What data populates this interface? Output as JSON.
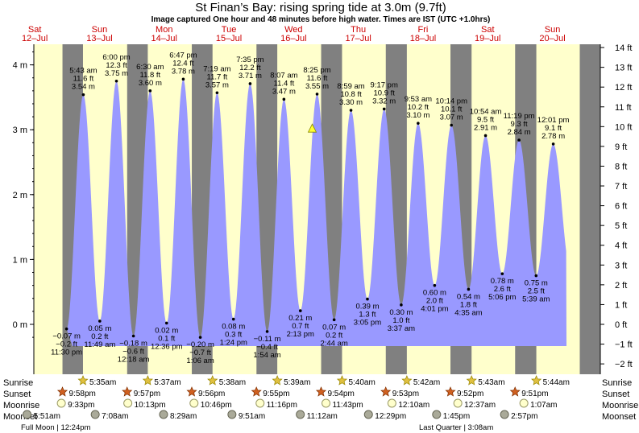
{
  "header": {
    "title": "St Finan’s Bay: rising  spring tide at 3.0m (9.7ft)",
    "subtitle": "Image captured One hour and 48 minutes before high water. Times are IST (UTC +1.0hrs)"
  },
  "colors": {
    "night": "#808080",
    "day": "#ffffcc",
    "tide": "#9999ff",
    "day_label": "#cc0000"
  },
  "chart_data": {
    "type": "area",
    "title": "St Finan’s Bay: rising  spring tide at 3.0m (9.7ft)",
    "x_start_hours": 0,
    "days": [
      {
        "day": "Sat",
        "date": "12–Jul"
      },
      {
        "day": "Sun",
        "date": "13–Jul"
      },
      {
        "day": "Mon",
        "date": "14–Jul"
      },
      {
        "day": "Tue",
        "date": "15–Jul"
      },
      {
        "day": "Wed",
        "date": "16–Jul"
      },
      {
        "day": "Thu",
        "date": "17–Jul"
      },
      {
        "day": "Fri",
        "date": "18–Jul"
      },
      {
        "day": "Sat",
        "date": "19–Jul"
      },
      {
        "day": "Sun",
        "date": "20–Jul"
      }
    ],
    "y_left": {
      "unit": "m",
      "ticks": [
        "0 m",
        "1 m",
        "2 m",
        "3 m",
        "4 m"
      ],
      "min": -0.3,
      "max": 4.3
    },
    "y_right": {
      "unit": "ft",
      "ticks": [
        "−2 ft",
        "−1 ft",
        "0 ft",
        "1 ft",
        "2 ft",
        "3 ft",
        "4 ft",
        "5 ft",
        "6 ft",
        "7 ft",
        "8 ft",
        "9 ft",
        "10 ft",
        "11 ft",
        "12 ft",
        "13 ft",
        "14 ft"
      ]
    },
    "tides": [
      {
        "type": "low",
        "time": "11:30 pm",
        "m": "−0.07 m",
        "ft": "−0.2 ft",
        "day": 0,
        "hour": 23.5,
        "height": -0.07
      },
      {
        "type": "high",
        "time": "5:43 am",
        "m": "3.54 m",
        "ft": "11.6 ft",
        "day": 1,
        "hour": 5.717,
        "height": 3.54
      },
      {
        "type": "low",
        "time": "11:49 am",
        "m": "0.05 m",
        "ft": "0.2 ft",
        "day": 1,
        "hour": 11.817,
        "height": 0.05
      },
      {
        "type": "high",
        "time": "6:00 pm",
        "m": "3.75 m",
        "ft": "12.3 ft",
        "day": 1,
        "hour": 18.0,
        "height": 3.75
      },
      {
        "type": "low",
        "time": "12:18 am",
        "m": "−0.18 m",
        "ft": "−0.6 ft",
        "day": 2,
        "hour": 0.3,
        "height": -0.18
      },
      {
        "type": "high",
        "time": "6:30 am",
        "m": "3.60 m",
        "ft": "11.8 ft",
        "day": 2,
        "hour": 6.5,
        "height": 3.6
      },
      {
        "type": "low",
        "time": "12:36 pm",
        "m": "0.02 m",
        "ft": "0.1 ft",
        "day": 2,
        "hour": 12.6,
        "height": 0.02
      },
      {
        "type": "high",
        "time": "6:47 pm",
        "m": "3.78 m",
        "ft": "12.4 ft",
        "day": 2,
        "hour": 18.783,
        "height": 3.78
      },
      {
        "type": "low",
        "time": "1:06 am",
        "m": "−0.20 m",
        "ft": "−0.7 ft",
        "day": 3,
        "hour": 1.1,
        "height": -0.2
      },
      {
        "type": "high",
        "time": "7:19 am",
        "m": "3.57 m",
        "ft": "11.7 ft",
        "day": 3,
        "hour": 7.317,
        "height": 3.57
      },
      {
        "type": "low",
        "time": "1:24 pm",
        "m": "0.08 m",
        "ft": "0.3 ft",
        "day": 3,
        "hour": 13.4,
        "height": 0.08
      },
      {
        "type": "high",
        "time": "7:35 pm",
        "m": "3.71 m",
        "ft": "12.2 ft",
        "day": 3,
        "hour": 19.583,
        "height": 3.71
      },
      {
        "type": "low",
        "time": "1:54 am",
        "m": "−0.11 m",
        "ft": "−0.4 ft",
        "day": 4,
        "hour": 1.9,
        "height": -0.11
      },
      {
        "type": "high",
        "time": "8:07 am",
        "m": "3.47 m",
        "ft": "11.4 ft",
        "day": 4,
        "hour": 8.117,
        "height": 3.47
      },
      {
        "type": "low",
        "time": "2:13 pm",
        "m": "0.21 m",
        "ft": "0.7 ft",
        "day": 4,
        "hour": 14.217,
        "height": 0.21
      },
      {
        "type": "high",
        "time": "8:25 pm",
        "m": "3.55 m",
        "ft": "11.6 ft",
        "day": 4,
        "hour": 20.417,
        "height": 3.55
      },
      {
        "type": "low",
        "time": "2:44 am",
        "m": "0.07 m",
        "ft": "0.2 ft",
        "day": 5,
        "hour": 2.733,
        "height": 0.07
      },
      {
        "type": "high",
        "time": "8:59 am",
        "m": "3.30 m",
        "ft": "10.8 ft",
        "day": 5,
        "hour": 8.983,
        "height": 3.3
      },
      {
        "type": "low",
        "time": "3:05 pm",
        "m": "0.39 m",
        "ft": "1.3 ft",
        "day": 5,
        "hour": 15.083,
        "height": 0.39
      },
      {
        "type": "high",
        "time": "9:17 pm",
        "m": "3.32 m",
        "ft": "10.9 ft",
        "day": 5,
        "hour": 21.283,
        "height": 3.32
      },
      {
        "type": "low",
        "time": "3:37 am",
        "m": "0.30 m",
        "ft": "1.0 ft",
        "day": 6,
        "hour": 3.617,
        "height": 0.3
      },
      {
        "type": "high",
        "time": "9:53 am",
        "m": "3.10 m",
        "ft": "10.2 ft",
        "day": 6,
        "hour": 9.883,
        "height": 3.1
      },
      {
        "type": "low",
        "time": "4:01 pm",
        "m": "0.60 m",
        "ft": "2.0 ft",
        "day": 6,
        "hour": 16.017,
        "height": 0.6
      },
      {
        "type": "high",
        "time": "10:14 pm",
        "m": "3.07 m",
        "ft": "10.1 ft",
        "day": 6,
        "hour": 22.233,
        "height": 3.07
      },
      {
        "type": "low",
        "time": "4:35 am",
        "m": "0.54 m",
        "ft": "1.8 ft",
        "day": 7,
        "hour": 4.583,
        "height": 0.54
      },
      {
        "type": "high",
        "time": "10:54 am",
        "m": "2.91 m",
        "ft": "9.5 ft",
        "day": 7,
        "hour": 10.9,
        "height": 2.91
      },
      {
        "type": "low",
        "time": "5:06 pm",
        "m": "0.78 m",
        "ft": "2.6 ft",
        "day": 7,
        "hour": 17.1,
        "height": 0.78
      },
      {
        "type": "high",
        "time": "11:19 pm",
        "m": "2.84 m",
        "ft": "9.3 ft",
        "day": 7,
        "hour": 23.317,
        "height": 2.84
      },
      {
        "type": "low",
        "time": "5:39 am",
        "m": "0.75 m",
        "ft": "2.5 ft",
        "day": 8,
        "hour": 5.65,
        "height": 0.75
      },
      {
        "type": "high",
        "time": "12:01 pm",
        "m": "2.78 m",
        "ft": "9.1 ft",
        "day": 8,
        "hour": 12.017,
        "height": 2.78
      }
    ],
    "current": {
      "height": 3.0,
      "day": 4,
      "hour": 18.617
    },
    "sun": [
      {
        "sunrise": "5:35am",
        "sunset": "9:58pm",
        "moonrise": "9:33pm",
        "moonset": "5:51am"
      },
      {
        "sunrise": "5:37am",
        "sunset": "9:57pm",
        "moonrise": "10:13pm",
        "moonset": "7:08am"
      },
      {
        "sunrise": "5:38am",
        "sunset": "9:56pm",
        "moonrise": "10:46pm",
        "moonset": "8:29am"
      },
      {
        "sunrise": "5:39am",
        "sunset": "9:55pm",
        "moonrise": "11:16pm",
        "moonset": "9:51am"
      },
      {
        "sunrise": "5:40am",
        "sunset": "9:54pm",
        "moonrise": "11:43pm",
        "moonset": "11:12am"
      },
      {
        "sunrise": "5:42am",
        "sunset": "9:53pm",
        "moonrise": "12:10am",
        "moonset": "12:29pm"
      },
      {
        "sunrise": "5:43am",
        "sunset": "9:52pm",
        "moonrise": "12:37am",
        "moonset": "1:45pm"
      },
      {
        "sunrise": "5:44am",
        "sunset": "9:51pm",
        "moonrise": "1:07am",
        "moonset": "2:57pm"
      }
    ],
    "moon_phases": [
      {
        "label": "Full Moon | 12:24pm"
      },
      {
        "label": "Last Quarter | 3:08am"
      }
    ]
  },
  "legend_labels": {
    "sunrise": "Sunrise",
    "sunset": "Sunset",
    "moonrise": "Moonrise",
    "moonset": "Moonset"
  }
}
